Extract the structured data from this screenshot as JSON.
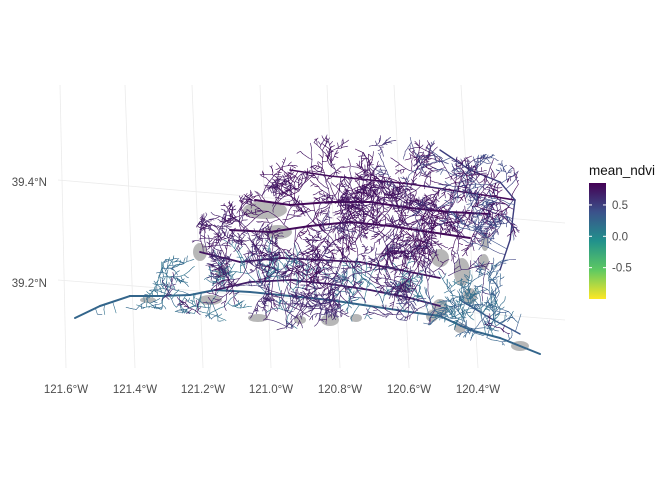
{
  "chart_data": {
    "type": "map",
    "x_tick_labels": [
      "121.6°W",
      "121.4°W",
      "121.2°W",
      "121.0°W",
      "120.8°W",
      "120.6°W",
      "120.4°W"
    ],
    "y_tick_labels": [
      "39.4°N",
      "39.2°N"
    ],
    "graticule": true,
    "legend": {
      "title": "mean_ndvi",
      "type": "continuous",
      "palette": "viridis",
      "colors": [
        "#fde725",
        "#5ec962",
        "#21918c",
        "#3b528b",
        "#440154"
      ],
      "ticks": [
        0.5,
        0.0,
        -0.5
      ],
      "tick_labels": [
        "0.5",
        "0.0",
        "-0.5"
      ],
      "range": [
        -1.0,
        0.85
      ],
      "position": "right"
    },
    "water_bodies_color": "#b3b3b3",
    "river_network": {
      "description": "river segments colored by mean_ndvi",
      "dominant_values": [
        0.8,
        0.6,
        0.4
      ]
    }
  }
}
